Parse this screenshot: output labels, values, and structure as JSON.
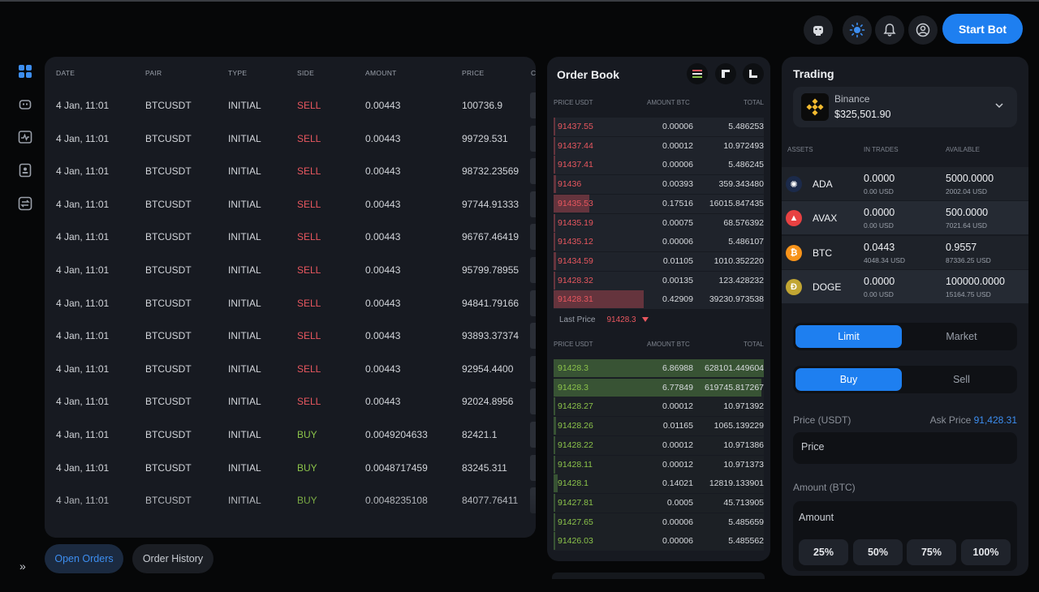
{
  "header": {
    "start_bot_label": "Start Bot",
    "icons": [
      "robot-icon",
      "sun-icon",
      "bell-icon",
      "user-icon"
    ]
  },
  "sidebar": {
    "icons": [
      "dashboard-icon",
      "robot-icon",
      "chart-icon",
      "wallet-icon",
      "exchange-icon"
    ],
    "expand_label": "»"
  },
  "orders": {
    "columns": [
      "DATE",
      "PAIR",
      "TYPE",
      "SIDE",
      "AMOUNT",
      "PRICE",
      "C"
    ],
    "rows": [
      {
        "date": "4 Jan, 11:01",
        "pair": "BTCUSDT",
        "type": "INITIAL",
        "side": "SELL",
        "amount": "0.00443",
        "price": "100736.9"
      },
      {
        "date": "4 Jan, 11:01",
        "pair": "BTCUSDT",
        "type": "INITIAL",
        "side": "SELL",
        "amount": "0.00443",
        "price": "99729.531"
      },
      {
        "date": "4 Jan, 11:01",
        "pair": "BTCUSDT",
        "type": "INITIAL",
        "side": "SELL",
        "amount": "0.00443",
        "price": "98732.23569"
      },
      {
        "date": "4 Jan, 11:01",
        "pair": "BTCUSDT",
        "type": "INITIAL",
        "side": "SELL",
        "amount": "0.00443",
        "price": "97744.91333"
      },
      {
        "date": "4 Jan, 11:01",
        "pair": "BTCUSDT",
        "type": "INITIAL",
        "side": "SELL",
        "amount": "0.00443",
        "price": "96767.46419"
      },
      {
        "date": "4 Jan, 11:01",
        "pair": "BTCUSDT",
        "type": "INITIAL",
        "side": "SELL",
        "amount": "0.00443",
        "price": "95799.78955"
      },
      {
        "date": "4 Jan, 11:01",
        "pair": "BTCUSDT",
        "type": "INITIAL",
        "side": "SELL",
        "amount": "0.00443",
        "price": "94841.79166"
      },
      {
        "date": "4 Jan, 11:01",
        "pair": "BTCUSDT",
        "type": "INITIAL",
        "side": "SELL",
        "amount": "0.00443",
        "price": "93893.37374"
      },
      {
        "date": "4 Jan, 11:01",
        "pair": "BTCUSDT",
        "type": "INITIAL",
        "side": "SELL",
        "amount": "0.00443",
        "price": "92954.4400"
      },
      {
        "date": "4 Jan, 11:01",
        "pair": "BTCUSDT",
        "type": "INITIAL",
        "side": "SELL",
        "amount": "0.00443",
        "price": "92024.8956"
      },
      {
        "date": "4 Jan, 11:01",
        "pair": "BTCUSDT",
        "type": "INITIAL",
        "side": "BUY",
        "amount": "0.0049204633",
        "price": "82421.1"
      },
      {
        "date": "4 Jan, 11:01",
        "pair": "BTCUSDT",
        "type": "INITIAL",
        "side": "BUY",
        "amount": "0.0048717459",
        "price": "83245.311"
      },
      {
        "date": "4 Jan, 11:01",
        "pair": "BTCUSDT",
        "type": "INITIAL",
        "side": "BUY",
        "amount": "0.0048235108",
        "price": "84077.76411"
      }
    ]
  },
  "tabs": {
    "open_orders": "Open Orders",
    "order_history": "Order History"
  },
  "order_book": {
    "title": "Order Book",
    "columns": [
      "PRICE USDT",
      "AMOUNT BTC",
      "TOTAL"
    ],
    "asks": [
      {
        "price": "91437.55",
        "amount": "0.00006",
        "total": "5.486253",
        "depth": 0.0
      },
      {
        "price": "91437.44",
        "amount": "0.00012",
        "total": "10.972493",
        "depth": 0.0
      },
      {
        "price": "91437.41",
        "amount": "0.00006",
        "total": "5.486245",
        "depth": 0.0
      },
      {
        "price": "91436",
        "amount": "0.00393",
        "total": "359.343480",
        "depth": 0.01
      },
      {
        "price": "91435.53",
        "amount": "0.17516",
        "total": "16015.847435",
        "depth": 0.17
      },
      {
        "price": "91435.19",
        "amount": "0.00075",
        "total": "68.576392",
        "depth": 0.0
      },
      {
        "price": "91435.12",
        "amount": "0.00006",
        "total": "5.486107",
        "depth": 0.0
      },
      {
        "price": "91434.59",
        "amount": "0.01105",
        "total": "1010.352220",
        "depth": 0.01
      },
      {
        "price": "91428.32",
        "amount": "0.00135",
        "total": "123.428232",
        "depth": 0.0
      },
      {
        "price": "91428.31",
        "amount": "0.42909",
        "total": "39230.973538",
        "depth": 0.43
      }
    ],
    "last_price_label": "Last Price",
    "last_price": "91428.3",
    "bids": [
      {
        "price": "91428.3",
        "amount": "6.86988",
        "total": "628101.449604",
        "depth": 1.0
      },
      {
        "price": "91428.3",
        "amount": "6.77849",
        "total": "619745.817267",
        "depth": 0.99
      },
      {
        "price": "91428.27",
        "amount": "0.00012",
        "total": "10.971392",
        "depth": 0.0
      },
      {
        "price": "91428.26",
        "amount": "0.01165",
        "total": "1065.139229",
        "depth": 0.01
      },
      {
        "price": "91428.22",
        "amount": "0.00012",
        "total": "10.971386",
        "depth": 0.0
      },
      {
        "price": "91428.11",
        "amount": "0.00012",
        "total": "10.971373",
        "depth": 0.0
      },
      {
        "price": "91428.1",
        "amount": "0.14021",
        "total": "12819.133901",
        "depth": 0.02
      },
      {
        "price": "91427.81",
        "amount": "0.0005",
        "total": "45.713905",
        "depth": 0.0
      },
      {
        "price": "91427.65",
        "amount": "0.00006",
        "total": "5.485659",
        "depth": 0.0
      },
      {
        "price": "91426.03",
        "amount": "0.00006",
        "total": "5.485562",
        "depth": 0.0
      }
    ]
  },
  "trading": {
    "title": "Trading",
    "exchange": {
      "name": "Binance",
      "balance": "$325,501.90"
    },
    "asset_columns": [
      "ASSETS",
      "IN TRADES",
      "AVAILABLE"
    ],
    "assets": [
      {
        "symbol": "ADA",
        "in_trades": "0.0000",
        "in_trades_usd": "0.00 USD",
        "available": "5000.0000",
        "available_usd": "2002.04 USD",
        "color": "#1b2a4a"
      },
      {
        "symbol": "AVAX",
        "in_trades": "0.0000",
        "in_trades_usd": "0.00 USD",
        "available": "500.0000",
        "available_usd": "7021.64 USD",
        "color": "#e84142"
      },
      {
        "symbol": "BTC",
        "in_trades": "0.0443",
        "in_trades_usd": "4048.34 USD",
        "available": "0.9557",
        "available_usd": "87336.25 USD",
        "color": "#f7931a"
      },
      {
        "symbol": "DOGE",
        "in_trades": "0.0000",
        "in_trades_usd": "0.00 USD",
        "available": "100000.0000",
        "available_usd": "15164.75 USD",
        "color": "#c2a633"
      }
    ],
    "order_type": {
      "active": "Limit",
      "inactive": "Market"
    },
    "side": {
      "active": "Buy",
      "inactive": "Sell"
    },
    "price_label": "Price (USDT)",
    "ask_price_label": "Ask Price",
    "ask_price": "91,428.31",
    "price_placeholder": "Price",
    "amount_label": "Amount (BTC)",
    "amount_placeholder": "Amount",
    "percent_buttons": [
      "25%",
      "50%",
      "75%",
      "100%"
    ]
  }
}
